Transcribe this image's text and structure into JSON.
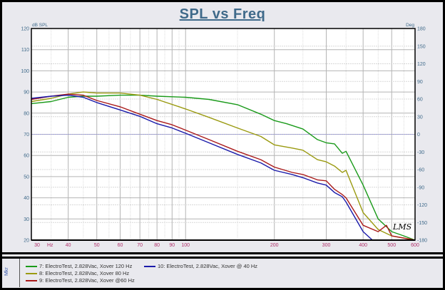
{
  "chart_data": {
    "type": "line",
    "title": "SPL vs Freq",
    "ylabel": "dB SPL",
    "y2label": "Deg",
    "xlabel": "Hz",
    "xscale": "log",
    "xlim": [
      30,
      600
    ],
    "ylim": [
      20,
      120
    ],
    "y2lim": [
      -180,
      180
    ],
    "grid": true,
    "legend_position": "bottom",
    "x_ticks": [
      30,
      40,
      50,
      60,
      70,
      80,
      90,
      100,
      200,
      300,
      400,
      500,
      600
    ],
    "x_tick_labels": [
      "30",
      "40",
      "50",
      "60",
      "70",
      "80",
      "90",
      "100",
      "200",
      "300",
      "400",
      "500",
      "600"
    ],
    "y_ticks": [
      20,
      30,
      40,
      50,
      60,
      70,
      80,
      90,
      100,
      110,
      120
    ],
    "y2_ticks": [
      -180,
      -150,
      -120,
      -90,
      -60,
      -30,
      0,
      30,
      60,
      90,
      120,
      150,
      180
    ],
    "annotation": "LMS",
    "series": [
      {
        "name": "7: ElectroTest, 2.828Vac, Xover 120 Hz",
        "color": "#1a9a1a",
        "x": [
          30,
          35,
          40,
          45,
          50,
          60,
          70,
          80,
          100,
          120,
          150,
          180,
          200,
          220,
          250,
          280,
          300,
          320,
          340,
          350,
          400,
          450,
          500,
          550,
          600
        ],
        "y": [
          84.5,
          85.5,
          87.5,
          88,
          88,
          88.5,
          88.5,
          88,
          87.5,
          86.5,
          84,
          79.5,
          76.5,
          75,
          72.5,
          67.5,
          66,
          65.5,
          61,
          62,
          46,
          30,
          24,
          22,
          20
        ]
      },
      {
        "name": "8: ElectroTest, 2.828Vac, Xover 80 Hz",
        "color": "#9a9a10",
        "x": [
          30,
          35,
          40,
          45,
          50,
          60,
          70,
          80,
          100,
          120,
          150,
          180,
          200,
          230,
          250,
          280,
          300,
          320,
          340,
          350,
          400,
          450,
          500,
          600
        ],
        "y": [
          85.5,
          87,
          89,
          90,
          89.5,
          89.5,
          88.5,
          86.5,
          82,
          78,
          73,
          69,
          65,
          63.5,
          62.5,
          58,
          57,
          55,
          52,
          53,
          33,
          25,
          22,
          20
        ]
      },
      {
        "name": "9: ElectroTest, 2.828Vac, Xover @60 Hz",
        "color": "#aa1a1a",
        "x": [
          30,
          35,
          40,
          45,
          50,
          60,
          70,
          80,
          90,
          100,
          120,
          150,
          180,
          200,
          230,
          250,
          280,
          300,
          320,
          340,
          350,
          400,
          450,
          480,
          500,
          600
        ],
        "y": [
          86.5,
          88,
          89,
          88.5,
          86,
          83,
          79.5,
          76.5,
          74.5,
          72,
          67.5,
          62,
          58,
          54.5,
          52,
          51,
          48.5,
          48,
          44,
          41.5,
          40,
          27,
          24,
          27,
          22,
          20
        ]
      },
      {
        "name": "10: ElectroTest, 2.828Vac, Xover @ 40 Hz",
        "color": "#1a1aaa",
        "x": [
          30,
          35,
          40,
          45,
          50,
          60,
          70,
          80,
          90,
          100,
          120,
          150,
          180,
          200,
          230,
          250,
          280,
          300,
          320,
          340,
          350,
          400,
          430,
          600
        ],
        "y": [
          87,
          88,
          88.5,
          87.5,
          85,
          81.5,
          78.5,
          75,
          73,
          70.5,
          66,
          60.5,
          56.5,
          53,
          51,
          49.5,
          47,
          46,
          42.5,
          40.5,
          38,
          24,
          20,
          20
        ]
      }
    ]
  },
  "legend": {
    "strip_label": "Mkr"
  }
}
